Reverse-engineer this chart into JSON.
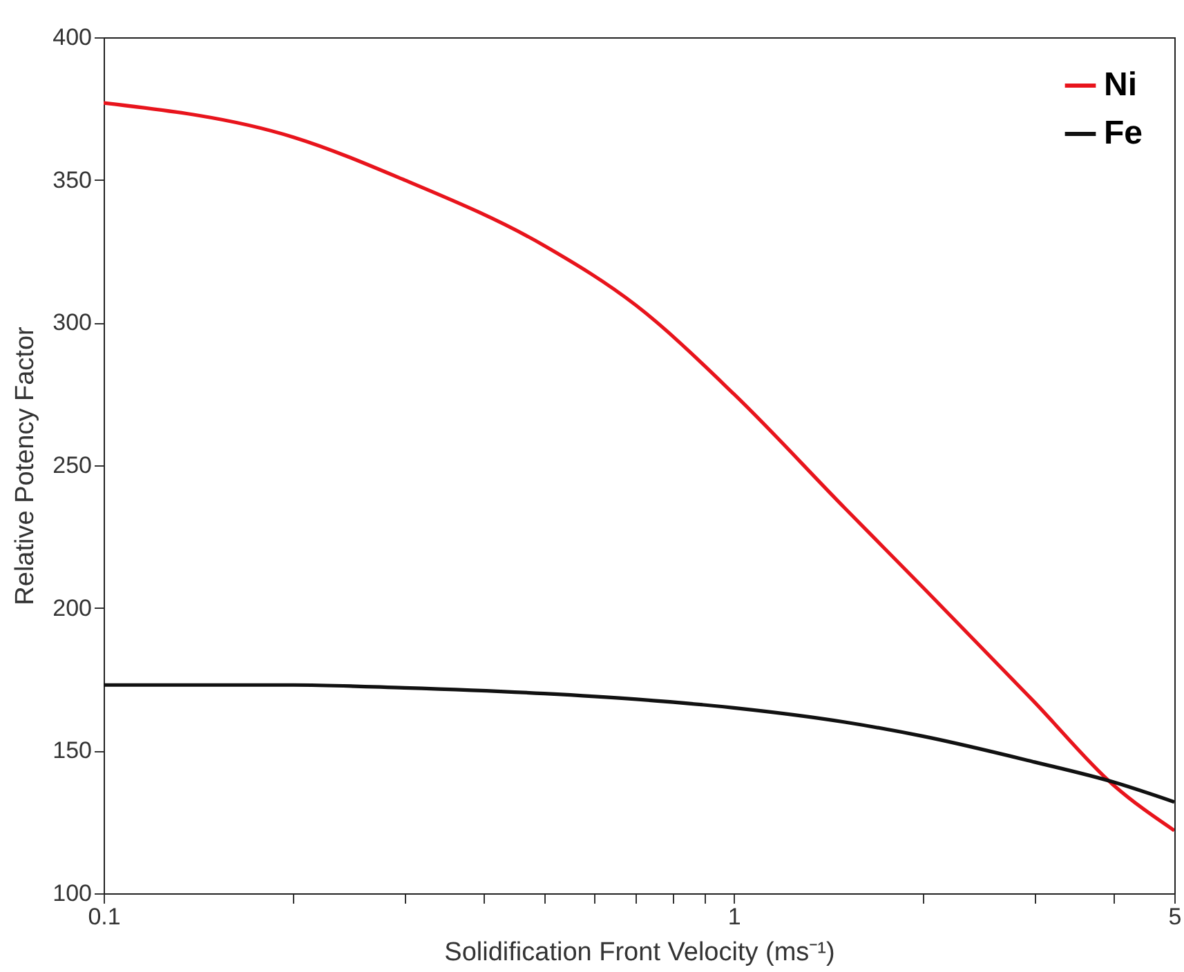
{
  "chart_data": {
    "type": "line",
    "xlabel": "Solidification Front Velocity (ms⁻¹)",
    "ylabel": "Relative Potency Factor",
    "log": "x",
    "legend": "top right",
    "x": [
      0.1,
      0.2,
      0.3,
      0.5,
      0.7,
      1,
      1.5,
      2,
      3,
      4,
      5
    ],
    "xlim": [
      0.1,
      5
    ],
    "ylim": [
      100,
      400
    ],
    "xticks": [
      0.1,
      {
        "value": 0.2,
        "label": null
      },
      {
        "value": 0.3,
        "label": null
      },
      {
        "value": 0.4,
        "label": null
      },
      {
        "value": 0.5,
        "label": null
      },
      {
        "value": 0.6,
        "label": null
      },
      {
        "value": 0.7,
        "label": null
      },
      {
        "value": 0.8,
        "label": null
      },
      {
        "value": 0.9,
        "label": null
      },
      1,
      {
        "value": 2,
        "label": null
      },
      {
        "value": 3,
        "label": null
      },
      {
        "value": 4,
        "label": null
      },
      5
    ],
    "yticks": [
      100,
      150,
      200,
      250,
      300,
      350,
      400
    ],
    "series": [
      {
        "name": "Ni",
        "color": "#e8141c",
        "values": [
          377,
          365,
          350,
          327,
          306,
          275,
          235,
          207,
          167,
          138,
          122
        ]
      },
      {
        "name": "Fe",
        "color": "#111111",
        "values": [
          173,
          173,
          172,
          170,
          168,
          165,
          160,
          155,
          146,
          139,
          132
        ]
      }
    ]
  }
}
